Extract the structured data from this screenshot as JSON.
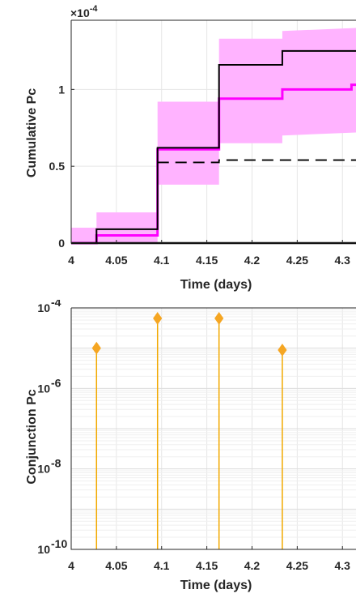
{
  "chart_data": [
    {
      "type": "line",
      "title": "",
      "xlabel": "Time (days)",
      "ylabel": "Cumulative Pc",
      "y_exponent_label": "×10",
      "y_exponent": "-4",
      "xlim": [
        4.0,
        4.315
      ],
      "ylim": [
        0,
        1.45
      ],
      "xticks": [
        4.0,
        4.05,
        4.1,
        4.15,
        4.2,
        4.25,
        4.3
      ],
      "xtick_labels": [
        "4",
        "4.05",
        "4.1",
        "4.15",
        "4.2",
        "4.25",
        "4.3"
      ],
      "yticks": [
        0,
        0.5,
        1.0
      ],
      "ytick_labels": [
        "0",
        "0.5",
        "1"
      ],
      "grid": true,
      "band": {
        "color": "#ffb3ff",
        "x": [
          4.0,
          4.028,
          4.028,
          4.0955,
          4.0955,
          4.1635,
          4.1635,
          4.2335,
          4.2335,
          4.315
        ],
        "lower": [
          0,
          0,
          0,
          0,
          0.38,
          0.38,
          0.65,
          0.65,
          0.7,
          0.72
        ],
        "upper": [
          0.1,
          0.1,
          0.2,
          0.2,
          0.92,
          0.92,
          1.33,
          1.33,
          1.38,
          1.4
        ]
      },
      "series": [
        {
          "style": "solid-black",
          "color": "#000000",
          "x": [
            4.0,
            4.028,
            4.028,
            4.0955,
            4.0955,
            4.1635,
            4.1635,
            4.2335,
            4.2335,
            4.315
          ],
          "y": [
            0,
            0,
            0.09,
            0.09,
            0.62,
            0.62,
            1.16,
            1.16,
            1.25,
            1.25
          ]
        },
        {
          "style": "solid-magenta",
          "color": "#ff00ff",
          "x": [
            4.0,
            4.028,
            4.028,
            4.0955,
            4.0955,
            4.1635,
            4.1635,
            4.2335,
            4.2335,
            4.31,
            4.31,
            4.315
          ],
          "y": [
            0,
            0,
            0.05,
            0.05,
            0.61,
            0.61,
            0.94,
            0.94,
            1.0,
            1.0,
            1.03,
            1.03
          ]
        },
        {
          "style": "dashed-black",
          "color": "#000000",
          "x": [
            4.0955,
            4.1635,
            4.1635,
            4.315
          ],
          "y": [
            0.525,
            0.525,
            0.54,
            0.54
          ]
        },
        {
          "style": "baseline-black",
          "color": "#000000",
          "x": [
            4.0,
            4.315
          ],
          "y": [
            0,
            0
          ]
        }
      ]
    },
    {
      "type": "scatter",
      "title": "",
      "xlabel": "Time (days)",
      "ylabel": "Conjunction Pc",
      "xlim": [
        4.0,
        4.315
      ],
      "ylim_exp": [
        -10,
        -4
      ],
      "log_y": true,
      "xticks": [
        4.0,
        4.05,
        4.1,
        4.15,
        4.2,
        4.25,
        4.3
      ],
      "xtick_labels": [
        "4",
        "4.05",
        "4.1",
        "4.15",
        "4.2",
        "4.25",
        "4.3"
      ],
      "ytick_base": "10",
      "ytick_exps": [
        "-10",
        "-8",
        "-6",
        "-4"
      ],
      "grid": true,
      "marker_color": "#f5a623",
      "stem_color": "#f2a900",
      "points": [
        {
          "x": 4.028,
          "y": 1e-05
        },
        {
          "x": 4.0955,
          "y": 5.5e-05
        },
        {
          "x": 4.1635,
          "y": 5.5e-05
        },
        {
          "x": 4.2335,
          "y": 9e-06
        }
      ]
    }
  ]
}
